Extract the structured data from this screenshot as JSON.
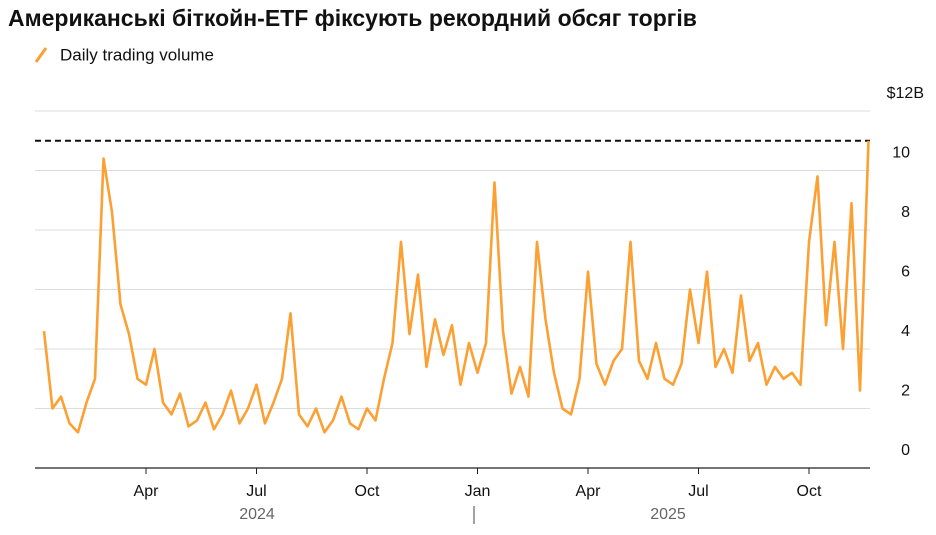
{
  "chart_data": {
    "type": "line",
    "title": "Американські біткойн-ETF фіксують рекордний обсяг торгів",
    "categories": [
      null,
      null,
      null,
      null,
      null,
      null,
      null,
      null,
      null,
      null,
      null,
      null,
      "Apr",
      null,
      null,
      null,
      null,
      null,
      null,
      null,
      null,
      null,
      null,
      null,
      null,
      "Jul",
      null,
      null,
      null,
      null,
      null,
      null,
      null,
      null,
      null,
      null,
      null,
      null,
      "Oct",
      null,
      null,
      null,
      null,
      null,
      null,
      null,
      null,
      null,
      null,
      null,
      null,
      "Jan",
      null,
      null,
      null,
      null,
      null,
      null,
      null,
      null,
      null,
      null,
      null,
      null,
      "Apr",
      null,
      null,
      null,
      null,
      null,
      null,
      null,
      null,
      null,
      null,
      null,
      null,
      "Jul",
      null,
      null,
      null,
      null,
      null,
      null,
      null,
      null,
      null,
      null,
      null,
      null,
      "Oct",
      null,
      null,
      null,
      null,
      null,
      null,
      null
    ],
    "x_groups": [
      "2024",
      "2025"
    ],
    "series": [
      {
        "name": "Daily trading volume",
        "color": "#fca033",
        "values": [
          4.6,
          2.0,
          2.4,
          1.5,
          1.2,
          2.2,
          3.0,
          10.4,
          8.6,
          5.5,
          4.5,
          3.0,
          2.8,
          4.0,
          2.2,
          1.8,
          2.5,
          1.4,
          1.6,
          2.2,
          1.3,
          1.8,
          2.6,
          1.5,
          2.0,
          2.8,
          1.5,
          2.2,
          3.0,
          5.2,
          1.8,
          1.4,
          2.0,
          1.2,
          1.6,
          2.4,
          1.5,
          1.3,
          2.0,
          1.6,
          3.0,
          4.2,
          7.6,
          4.5,
          6.5,
          3.4,
          5.0,
          3.8,
          4.8,
          2.8,
          4.2,
          3.2,
          4.2,
          9.6,
          4.6,
          2.5,
          3.4,
          2.4,
          7.6,
          5.0,
          3.2,
          2.0,
          1.8,
          3.0,
          6.6,
          3.5,
          2.8,
          3.6,
          4.0,
          7.6,
          3.6,
          3.0,
          4.2,
          3.0,
          2.8,
          3.5,
          6.0,
          4.2,
          6.6,
          3.4,
          4.0,
          3.2,
          5.8,
          3.6,
          4.2,
          2.8,
          3.4,
          3.0,
          3.2,
          2.8,
          7.6,
          9.8,
          4.8,
          7.6,
          4.0,
          8.9,
          2.6,
          11.0
        ]
      }
    ],
    "reference_line": 11,
    "ylim": [
      0,
      12
    ],
    "yticks": [
      0,
      2,
      4,
      6,
      8,
      10,
      {
        "value": 12,
        "label": "$12B"
      }
    ],
    "grid": true
  }
}
